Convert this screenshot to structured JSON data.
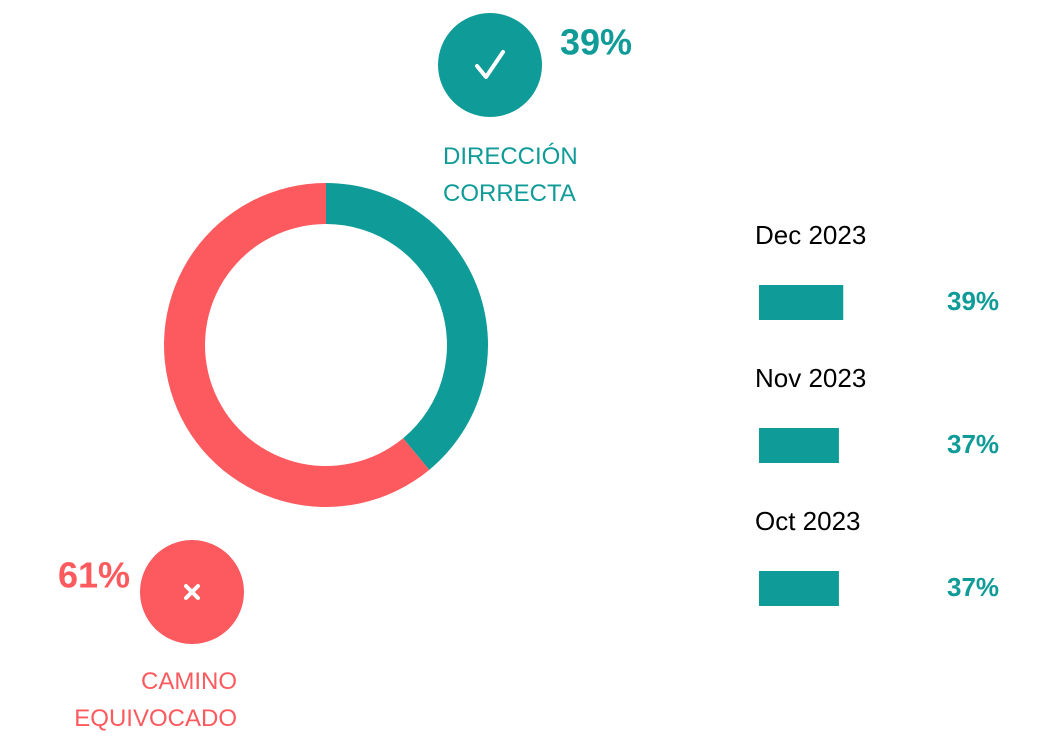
{
  "chart_data": [
    {
      "type": "pie",
      "donut": true,
      "categories": [
        "DIRECCIÓN CORRECTA",
        "CAMINO EQUIVOCADO"
      ],
      "values": [
        39,
        61
      ],
      "value_labels": [
        "39%",
        "61%"
      ],
      "colors": [
        "#0f9b97",
        "#fc5a5e"
      ]
    },
    {
      "type": "bar",
      "orientation": "horizontal",
      "categories": [
        "Dec 2023",
        "Nov 2023",
        "Oct 2023"
      ],
      "values": [
        39,
        37,
        37
      ],
      "value_labels": [
        "39%",
        "37%",
        "37%"
      ],
      "color": "#0f9b97"
    }
  ]
}
